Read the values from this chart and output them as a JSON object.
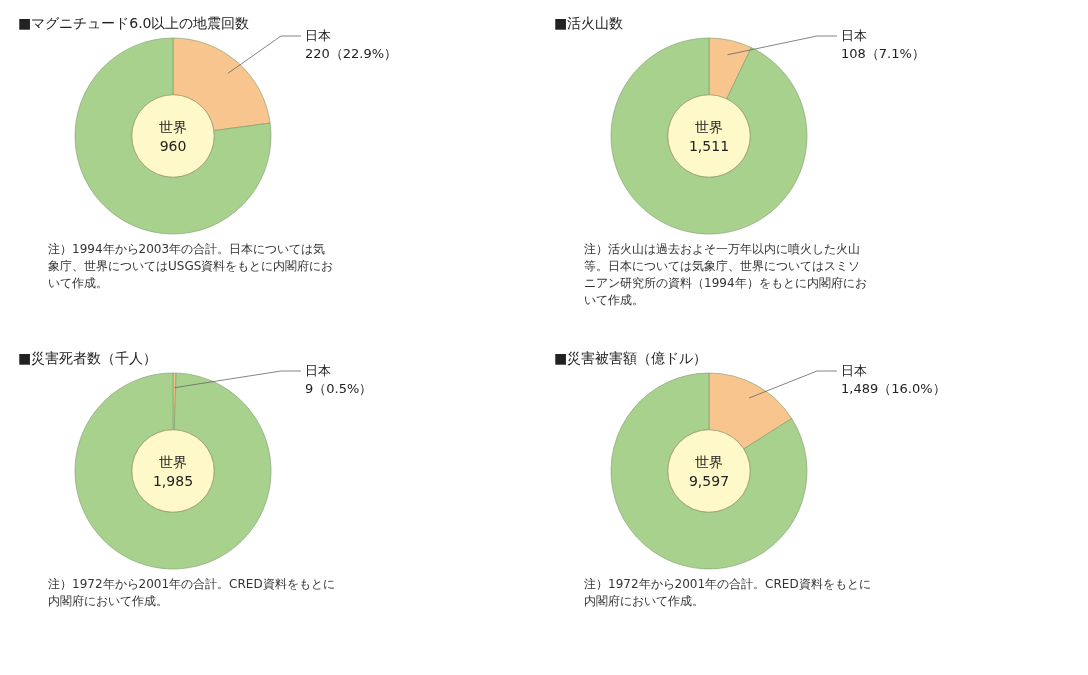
{
  "chart_data": [
    {
      "type": "donut",
      "title": "■マグニチュード6.0以上の地震回数",
      "categories": [
        "日本",
        "世界"
      ],
      "values": [
        22.9,
        77.1
      ],
      "colors": [
        "#f8c58e",
        "#a9d18e"
      ],
      "value_labels": [
        "220（22.9%）",
        null
      ],
      "annotations": [
        "960",
        "注）1994年から2003年の合計。日本については気象庁、世界についてはUSGS資料をもとに内閣府において作成。"
      ]
    },
    {
      "type": "donut",
      "title": "■活火山数",
      "categories": [
        "日本",
        "世界"
      ],
      "values": [
        7.1,
        92.9
      ],
      "colors": [
        "#f8c58e",
        "#a9d18e"
      ],
      "value_labels": [
        "108（7.1%）",
        null
      ],
      "annotations": [
        "1,511",
        "注）活火山は過去およそ一万年以内に噴火した火山等。日本については気象庁、世界についてはスミソニアン研究所の資料（1994年）をもとに内閣府において作成。"
      ]
    },
    {
      "type": "donut",
      "title": "■災害死者数（千人）",
      "categories": [
        "日本",
        "世界"
      ],
      "values": [
        0.5,
        99.5
      ],
      "colors": [
        "#f8c58e",
        "#a9d18e"
      ],
      "value_labels": [
        "9（0.5%）",
        null
      ],
      "annotations": [
        "1,985",
        "注）1972年から2001年の合計。CRED資料をもとに内閣府において作成。"
      ]
    },
    {
      "type": "donut",
      "title": "■災害被害額（億ドル）",
      "categories": [
        "日本",
        "世界"
      ],
      "values": [
        16.0,
        84.0
      ],
      "colors": [
        "#f8c58e",
        "#a9d18e"
      ],
      "value_labels": [
        "1,489（16.0%）",
        null
      ],
      "annotations": [
        "9,597",
        "注）1972年から2001年の合計。CRED資料をもとに内閣府において作成。"
      ]
    }
  ]
}
